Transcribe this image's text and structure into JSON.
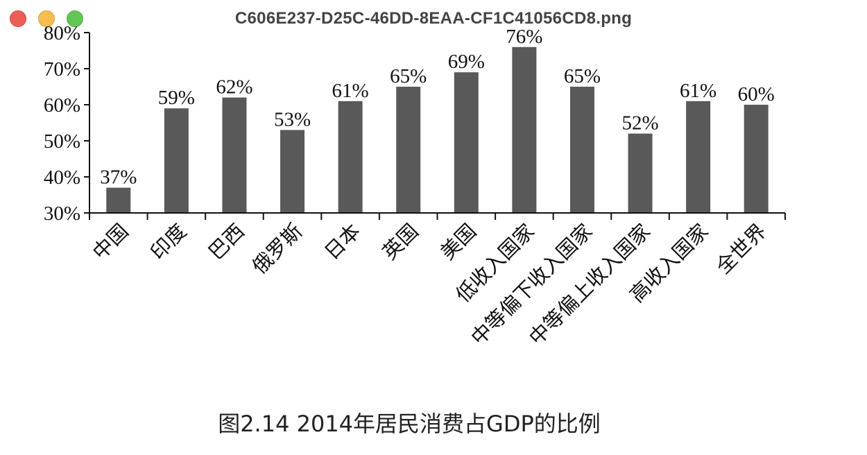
{
  "window": {
    "title": "C606E237-D25C-46DD-8EAA-CF1C41056CD8.png"
  },
  "caption": "图2.14 2014年居民消费占GDP的比例",
  "colors": {
    "bar": "#595959",
    "axis": "#111111",
    "close": "#ec5f57",
    "minimize": "#f5be4f",
    "maximize": "#62c655"
  },
  "chart_data": {
    "type": "bar",
    "title": "",
    "xlabel": "",
    "ylabel": "",
    "categories": [
      "中国",
      "印度",
      "巴西",
      "俄罗斯",
      "日本",
      "英国",
      "美国",
      "低收入国家",
      "中等偏下收入国家",
      "中等偏上收入国家",
      "高收入国家",
      "全世界"
    ],
    "values": [
      37,
      59,
      62,
      53,
      61,
      65,
      69,
      76,
      65,
      52,
      61,
      60
    ],
    "value_labels": [
      "37%",
      "59%",
      "62%",
      "53%",
      "61%",
      "65%",
      "69%",
      "76%",
      "65%",
      "52%",
      "61%",
      "60%"
    ],
    "yticks": [
      30,
      40,
      50,
      60,
      70,
      80
    ],
    "ytick_labels": [
      "30%",
      "40%",
      "50%",
      "60%",
      "70%",
      "80%"
    ],
    "ylim": [
      30,
      80
    ],
    "grid": false,
    "legend": "none"
  }
}
